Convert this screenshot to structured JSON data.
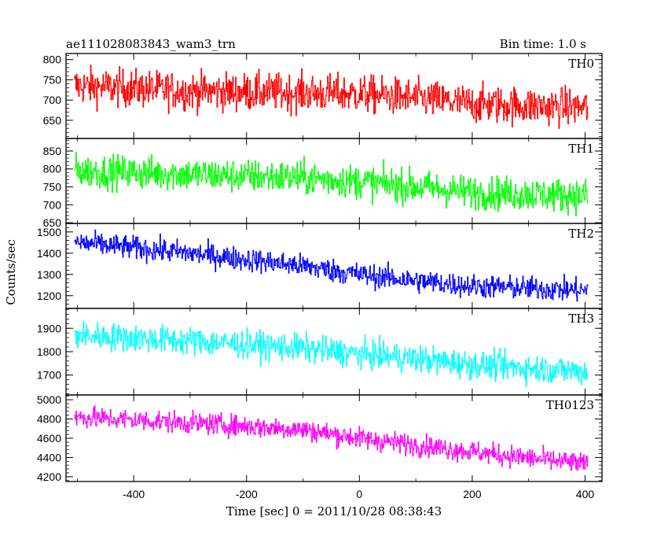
{
  "header": {
    "title": "ae111028083843_wam3_trn",
    "bin_time": "Bin time: 1.0 s"
  },
  "y_axis_label": "Counts/sec",
  "x_axis_label": "Time [sec] 0 = 2011/10/28 08:38:43",
  "chart_data": {
    "type": "line",
    "title": "ae111028083843_wam3_trn",
    "xlabel": "Time [sec] 0 = 2011/10/28 08:38:43",
    "ylabel": "Counts/sec",
    "xlim": [
      -520,
      430
    ],
    "x_ticks": [
      -400,
      -200,
      0,
      200,
      400
    ],
    "x_range": [
      -505,
      405
    ],
    "grid": false,
    "panels": [
      {
        "name": "TH0",
        "color": "#ff0000",
        "ylim": [
          605,
          815
        ],
        "y_ticks": [
          650,
          700,
          750,
          800
        ],
        "trend": [
          [
            -500,
            735
          ],
          [
            -300,
            722
          ],
          [
            -100,
            718
          ],
          [
            0,
            715
          ],
          [
            100,
            705
          ],
          [
            200,
            690
          ],
          [
            400,
            682
          ]
        ],
        "noise_amplitude": 55
      },
      {
        "name": "TH1",
        "color": "#00ff00",
        "ylim": [
          648,
          885
        ],
        "y_ticks": [
          650,
          700,
          750,
          800,
          850
        ],
        "trend": [
          [
            -500,
            795
          ],
          [
            -300,
            785
          ],
          [
            -100,
            775
          ],
          [
            0,
            765
          ],
          [
            100,
            750
          ],
          [
            200,
            735
          ],
          [
            400,
            725
          ]
        ],
        "noise_amplitude": 55
      },
      {
        "name": "TH2",
        "color": "#0000ff",
        "ylim": [
          1140,
          1540
        ],
        "y_ticks": [
          1200,
          1300,
          1400,
          1500
        ],
        "trend": [
          [
            -500,
            1450
          ],
          [
            -300,
            1400
          ],
          [
            -100,
            1340
          ],
          [
            0,
            1300
          ],
          [
            100,
            1270
          ],
          [
            200,
            1245
          ],
          [
            400,
            1225
          ]
        ],
        "noise_amplitude": 65
      },
      {
        "name": "TH3",
        "color": "#00ffff",
        "ylim": [
          1615,
          1985
        ],
        "y_ticks": [
          1700,
          1800,
          1900
        ],
        "trend": [
          [
            -500,
            1870
          ],
          [
            -300,
            1845
          ],
          [
            -100,
            1815
          ],
          [
            0,
            1790
          ],
          [
            100,
            1770
          ],
          [
            200,
            1745
          ],
          [
            400,
            1715
          ]
        ],
        "noise_amplitude": 70
      },
      {
        "name": "TH0123",
        "color": "#ff00ff",
        "ylim": [
          4150,
          5050
        ],
        "y_ticks": [
          4200,
          4400,
          4600,
          4800,
          5000
        ],
        "trend": [
          [
            -500,
            4820
          ],
          [
            -300,
            4760
          ],
          [
            -100,
            4690
          ],
          [
            0,
            4600
          ],
          [
            100,
            4530
          ],
          [
            200,
            4460
          ],
          [
            400,
            4330
          ]
        ],
        "noise_amplitude": 130
      }
    ]
  }
}
